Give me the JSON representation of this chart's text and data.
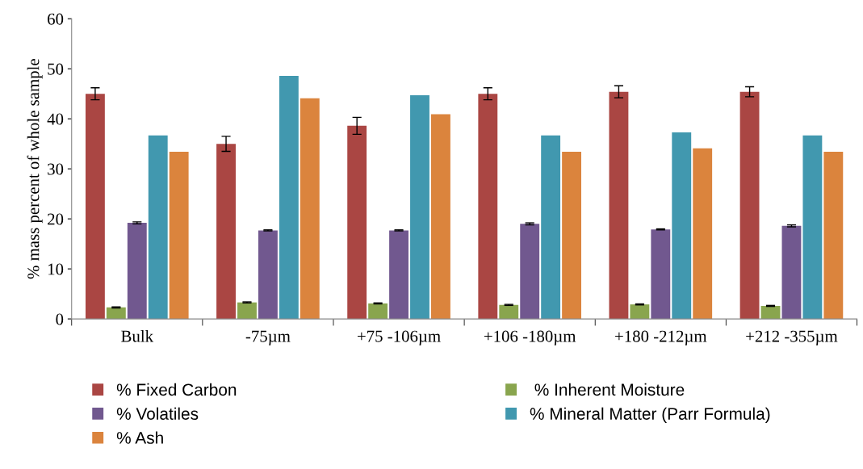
{
  "chart_data": {
    "type": "bar",
    "ylabel": "% mass percent of whole sample",
    "categories": [
      "Bulk",
      "-75µm",
      "+75 -106µm",
      "+106 -180µm",
      "+180 -212µm",
      "+212 -355µm"
    ],
    "ylim": [
      0,
      60
    ],
    "yticks": [
      0,
      10,
      20,
      30,
      40,
      50,
      60
    ],
    "grid": false,
    "legend": "bottom",
    "series": [
      {
        "name": "% Fixed Carbon",
        "color": "#aa4643",
        "values": [
          45.0,
          35.0,
          38.6,
          45.0,
          45.4,
          45.4
        ],
        "errors": [
          1.2,
          1.5,
          1.7,
          1.2,
          1.2,
          1.0
        ]
      },
      {
        "name": " % Inherent Moisture",
        "color": "#89a54e",
        "values": [
          2.3,
          3.3,
          3.1,
          2.8,
          2.9,
          2.6
        ],
        "errors": [
          0.1,
          0.1,
          0.1,
          0.1,
          0.1,
          0.1
        ]
      },
      {
        "name": "% Volatiles",
        "color": "#71588f",
        "values": [
          19.2,
          17.7,
          17.7,
          19.0,
          17.9,
          18.6
        ],
        "errors": [
          0.2,
          0.1,
          0.1,
          0.2,
          0.1,
          0.2
        ]
      },
      {
        "name": "% Mineral Matter (Parr Formula)",
        "color": "#4198af",
        "values": [
          36.7,
          48.6,
          44.7,
          36.7,
          37.3,
          36.7
        ]
      },
      {
        "name": "% Ash",
        "color": "#db843d",
        "values": [
          33.4,
          44.1,
          40.9,
          33.4,
          34.1,
          33.4
        ]
      }
    ]
  }
}
